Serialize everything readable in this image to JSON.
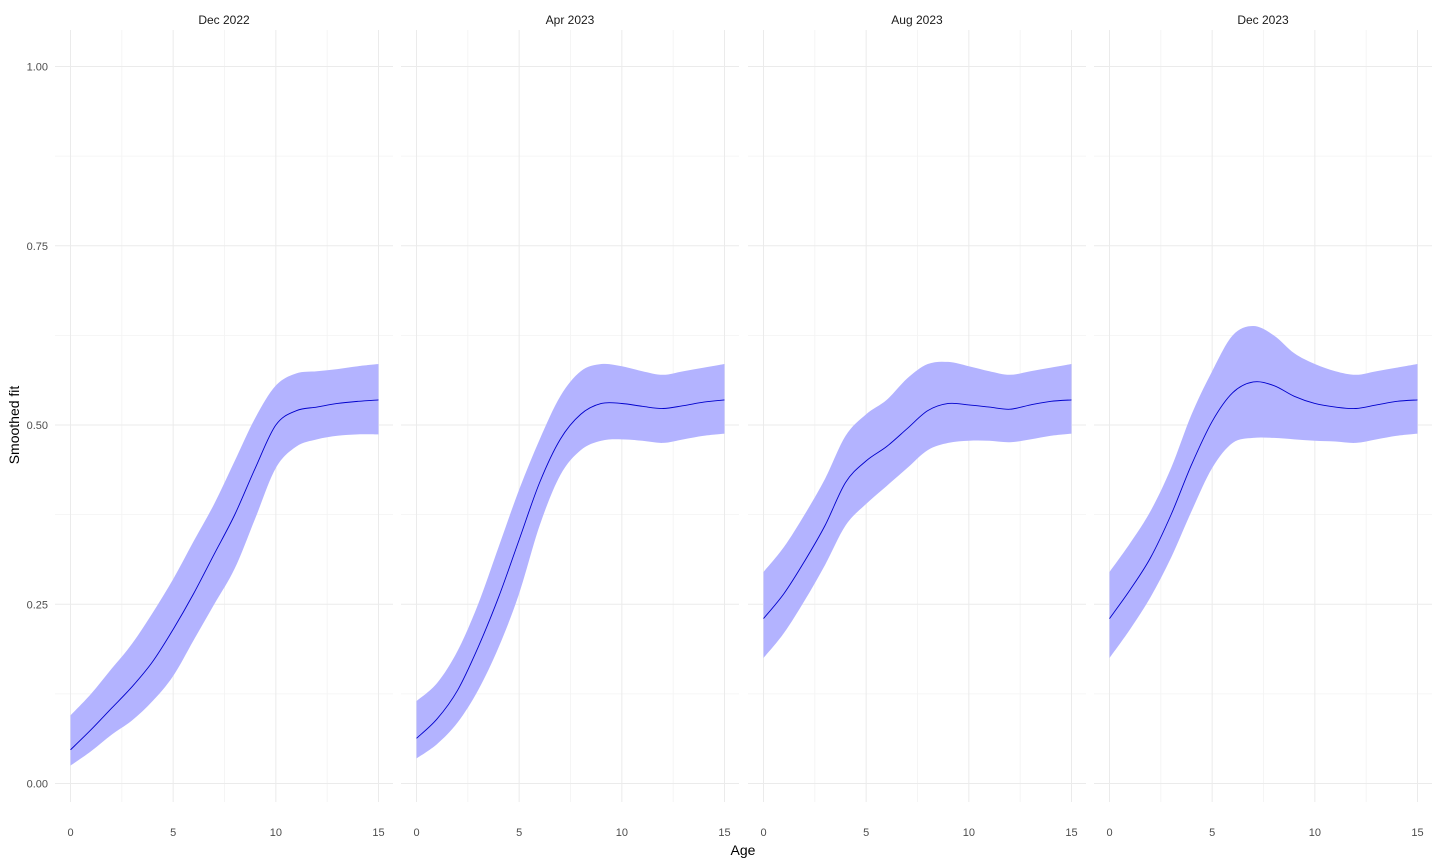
{
  "chart_data": {
    "type": "line",
    "subtype": "faceted smooth with confidence ribbon",
    "xlabel": "Age",
    "ylabel": "Smoothed fit",
    "xlim": [
      0,
      15
    ],
    "ylim": [
      0,
      1
    ],
    "x_ticks": [
      0,
      5,
      10,
      15
    ],
    "x_tick_labels": [
      "0",
      "5",
      "10",
      "15"
    ],
    "y_ticks": [
      0,
      0.25,
      0.5,
      0.75,
      1
    ],
    "y_tick_labels": [
      "0.00",
      "0.25",
      "0.50",
      "0.75",
      "1.00"
    ],
    "grid": true,
    "colors": {
      "line": "#0000cc",
      "ribbon": "#b3b3ff",
      "grid_major": "#ebebeb",
      "grid_minor": "#f3f3f3"
    },
    "facets": [
      {
        "title": "Dec 2022",
        "x": [
          0,
          1,
          2,
          3,
          4,
          5,
          6,
          7,
          8,
          9,
          10,
          11,
          12,
          13,
          14,
          15
        ],
        "fit": [
          0.047,
          0.075,
          0.105,
          0.135,
          0.17,
          0.215,
          0.265,
          0.32,
          0.375,
          0.44,
          0.5,
          0.52,
          0.525,
          0.53,
          0.533,
          0.535
        ],
        "lower": [
          0.025,
          0.045,
          0.068,
          0.088,
          0.115,
          0.15,
          0.2,
          0.25,
          0.3,
          0.37,
          0.44,
          0.47,
          0.48,
          0.485,
          0.487,
          0.487
        ],
        "upper": [
          0.095,
          0.125,
          0.16,
          0.195,
          0.238,
          0.285,
          0.338,
          0.39,
          0.45,
          0.51,
          0.555,
          0.572,
          0.575,
          0.578,
          0.582,
          0.585
        ]
      },
      {
        "title": "Apr 2023",
        "x": [
          0,
          1,
          2,
          3,
          4,
          5,
          6,
          7,
          8,
          9,
          10,
          11,
          12,
          13,
          14,
          15
        ],
        "fit": [
          0.063,
          0.09,
          0.13,
          0.19,
          0.26,
          0.34,
          0.42,
          0.48,
          0.515,
          0.53,
          0.53,
          0.526,
          0.523,
          0.527,
          0.532,
          0.535
        ],
        "lower": [
          0.035,
          0.055,
          0.085,
          0.13,
          0.19,
          0.265,
          0.36,
          0.43,
          0.465,
          0.478,
          0.48,
          0.478,
          0.475,
          0.48,
          0.485,
          0.488
        ],
        "upper": [
          0.115,
          0.14,
          0.185,
          0.25,
          0.33,
          0.41,
          0.48,
          0.54,
          0.575,
          0.585,
          0.582,
          0.575,
          0.57,
          0.575,
          0.58,
          0.585
        ]
      },
      {
        "title": "Aug 2023",
        "x": [
          0,
          1,
          2,
          3,
          4,
          5,
          6,
          7,
          8,
          9,
          10,
          11,
          12,
          13,
          14,
          15
        ],
        "fit": [
          0.23,
          0.265,
          0.31,
          0.36,
          0.42,
          0.45,
          0.47,
          0.495,
          0.52,
          0.53,
          0.528,
          0.525,
          0.522,
          0.528,
          0.533,
          0.535
        ],
        "lower": [
          0.175,
          0.21,
          0.255,
          0.305,
          0.36,
          0.39,
          0.415,
          0.44,
          0.465,
          0.475,
          0.478,
          0.478,
          0.476,
          0.48,
          0.485,
          0.488
        ],
        "upper": [
          0.295,
          0.33,
          0.375,
          0.425,
          0.485,
          0.515,
          0.535,
          0.565,
          0.585,
          0.588,
          0.582,
          0.575,
          0.57,
          0.575,
          0.58,
          0.585
        ]
      },
      {
        "title": "Dec 2023",
        "x": [
          0,
          1,
          2,
          3,
          4,
          5,
          6,
          7,
          8,
          9,
          10,
          11,
          12,
          13,
          14,
          15
        ],
        "fit": [
          0.23,
          0.27,
          0.315,
          0.375,
          0.445,
          0.505,
          0.545,
          0.56,
          0.555,
          0.54,
          0.53,
          0.525,
          0.523,
          0.528,
          0.533,
          0.535
        ],
        "lower": [
          0.175,
          0.215,
          0.26,
          0.315,
          0.38,
          0.44,
          0.475,
          0.482,
          0.482,
          0.48,
          0.478,
          0.477,
          0.475,
          0.48,
          0.485,
          0.488
        ],
        "upper": [
          0.295,
          0.335,
          0.38,
          0.44,
          0.515,
          0.575,
          0.625,
          0.638,
          0.625,
          0.6,
          0.585,
          0.575,
          0.57,
          0.575,
          0.58,
          0.585
        ]
      }
    ]
  }
}
